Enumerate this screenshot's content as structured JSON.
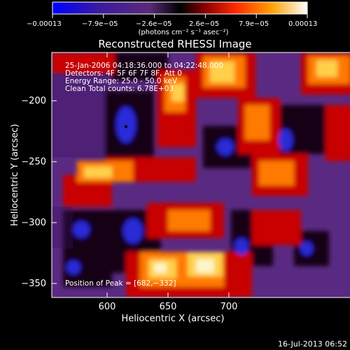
{
  "colorbar": {
    "tick_labels": [
      "−0.00013",
      "−7.9e−05",
      "−2.6e−05",
      "2.6e−05",
      "7.9e−05",
      "0.00013"
    ],
    "unit_label": "(photons cm⁻² s⁻¹ asec⁻²)",
    "colors": [
      "#0000ff",
      "#4b1e8c",
      "#000000",
      "#8a0000",
      "#ff3000",
      "#ffa000",
      "#ffffff"
    ]
  },
  "plot": {
    "title": "Reconstructed RHESSI Image",
    "xlabel": "Heliocentric X (arcsec)",
    "ylabel": "Heliocentric Y (arcsec)",
    "x_ticks": [
      "600",
      "650",
      "700"
    ],
    "y_ticks": [
      "−200",
      "−250",
      "−300",
      "−350"
    ],
    "info_lines": [
      "25-Jan-2006 04:18:36.000 to 04:22:48.000",
      "Detectors: 4F 5F 6F 7F 8F, Att 0",
      "Energy Range: 25.0 - 50.0 keV",
      "Clean     Total counts: 6.78E+03"
    ],
    "peak_label": "Position of Peak = [682,−332]"
  },
  "footer": {
    "timestamp": "16-Jul-2013 06:52"
  }
}
